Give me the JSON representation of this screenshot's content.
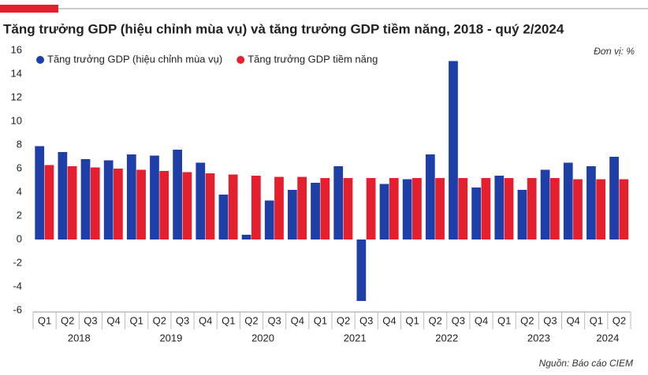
{
  "chart_data": {
    "type": "grouped-bar",
    "title": "Tăng trưởng GDP (hiệu chỉnh mùa vụ) và tăng trưởng GDP tiềm năng, 2018 - quý 2/2024",
    "unit_note": "Đơn vị: %",
    "source": "Nguồn: Báo cáo CIEM",
    "category_groups": [
      {
        "name": "2018",
        "categories": [
          "Q1",
          "Q2",
          "Q3",
          "Q4"
        ]
      },
      {
        "name": "2019",
        "categories": [
          "Q1",
          "Q2",
          "Q3",
          "Q4"
        ]
      },
      {
        "name": "2020",
        "categories": [
          "Q1",
          "Q2",
          "Q3",
          "Q4"
        ]
      },
      {
        "name": "2021",
        "categories": [
          "Q1",
          "Q2",
          "Q3",
          "Q4"
        ]
      },
      {
        "name": "2022",
        "categories": [
          "Q1",
          "Q2",
          "Q3",
          "Q4"
        ]
      },
      {
        "name": "2023",
        "categories": [
          "Q1",
          "Q2",
          "Q3",
          "Q4"
        ]
      },
      {
        "name": "2024",
        "categories": [
          "Q1",
          "Q2"
        ]
      }
    ],
    "series": [
      {
        "name": "Tăng trưởng GDP (hiệu chỉnh mùa vụ)",
        "color": "#1f3fa8",
        "values": [
          7.9,
          7.4,
          6.8,
          6.7,
          7.2,
          7.1,
          7.6,
          6.5,
          3.8,
          0.4,
          3.3,
          4.2,
          4.8,
          6.2,
          -5.2,
          4.7,
          5.1,
          7.2,
          15.1,
          4.4,
          5.4,
          4.2,
          5.9,
          6.5,
          6.2,
          7.0
        ]
      },
      {
        "name": "Tăng trưởng GDP tiềm năng",
        "color": "#e5202e",
        "values": [
          6.3,
          6.2,
          6.1,
          6.0,
          5.9,
          5.8,
          5.7,
          5.6,
          5.5,
          5.4,
          5.3,
          5.3,
          5.2,
          5.2,
          5.2,
          5.2,
          5.2,
          5.2,
          5.2,
          5.2,
          5.2,
          5.2,
          5.2,
          5.1,
          5.1,
          5.1
        ]
      }
    ],
    "ylim": [
      -6,
      16
    ],
    "yticks": [
      -6,
      -4,
      -2,
      0,
      2,
      4,
      6,
      8,
      10,
      12,
      14,
      16
    ],
    "grid": false
  }
}
